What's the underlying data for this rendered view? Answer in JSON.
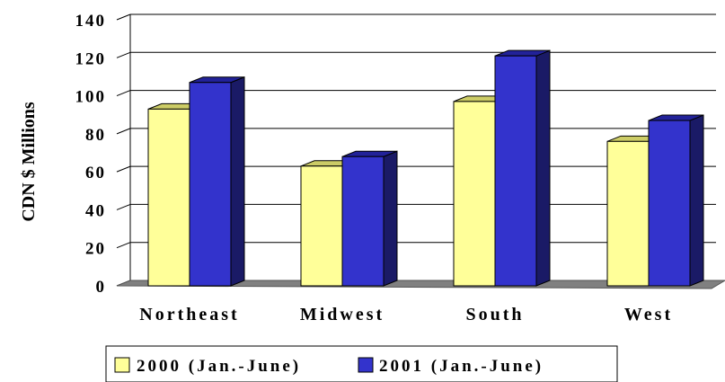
{
  "chart_data": {
    "type": "bar",
    "categories": [
      "Northeast",
      "Midwest",
      "South",
      "West"
    ],
    "series": [
      {
        "name": "2000 (Jan.-June)",
        "values": [
          93,
          63,
          97,
          76
        ],
        "color": "#ffff99"
      },
      {
        "name": "2001 (Jan.-June)",
        "values": [
          107,
          68,
          121,
          87
        ],
        "color": "#3333cc"
      }
    ],
    "ylabel": "CDN $ Millions",
    "xlabel": "",
    "ylim": [
      0,
      140
    ],
    "yticks": [
      "0",
      "20",
      "40",
      "60",
      "80",
      "100",
      "120",
      "140"
    ],
    "grid": true,
    "legend_position": "bottom",
    "style": "3d-bar"
  }
}
